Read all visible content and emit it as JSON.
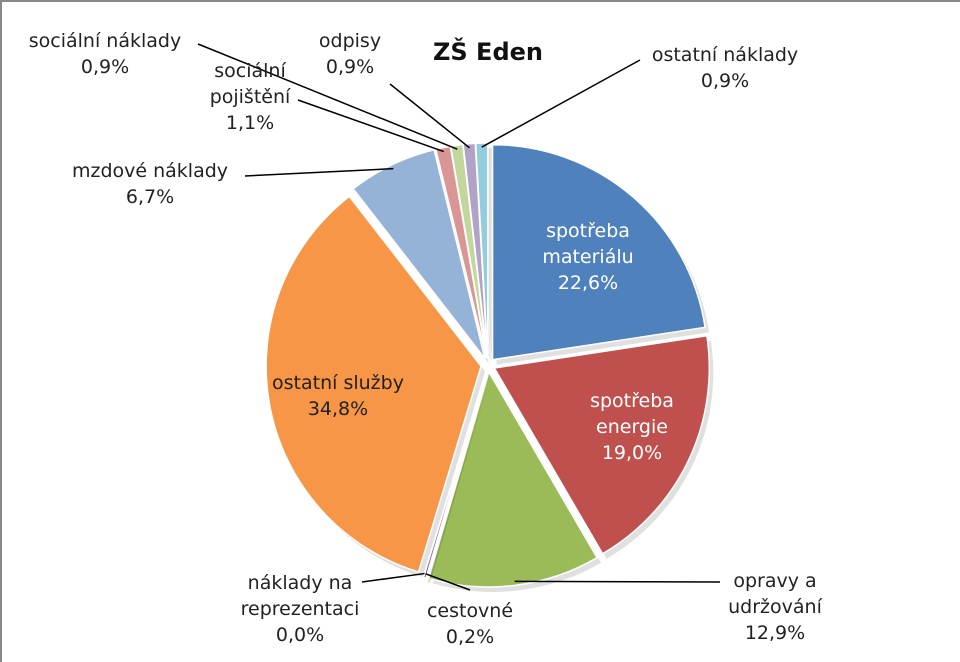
{
  "chart_data": {
    "type": "pie",
    "title": "ZŠ Eden",
    "categories": [
      "spotřeba materiálu",
      "spotřeba energie",
      "opravy a udržování",
      "cestovné",
      "náklady na reprezentaci",
      "ostatní služby",
      "mzdové náklady",
      "sociální pojištění",
      "sociální náklady",
      "odpisy",
      "ostatní náklady"
    ],
    "values": [
      22.6,
      19.0,
      12.9,
      0.2,
      0.0,
      34.8,
      6.7,
      1.1,
      0.9,
      0.9,
      0.9
    ],
    "value_labels": [
      "22,6%",
      "19,0%",
      "12,9%",
      "0,2%",
      "0,0%",
      "34,8%",
      "6,7%",
      "1,1%",
      "0,9%",
      "0,9%",
      "0,9%"
    ],
    "colors": [
      "#4f81bd",
      "#c0504d",
      "#9bbb59",
      "#8064a2",
      "#4bacc6",
      "#f79646",
      "#95b3d7",
      "#d99694",
      "#c3d69b",
      "#b3a2c7",
      "#93cddd"
    ]
  }
}
